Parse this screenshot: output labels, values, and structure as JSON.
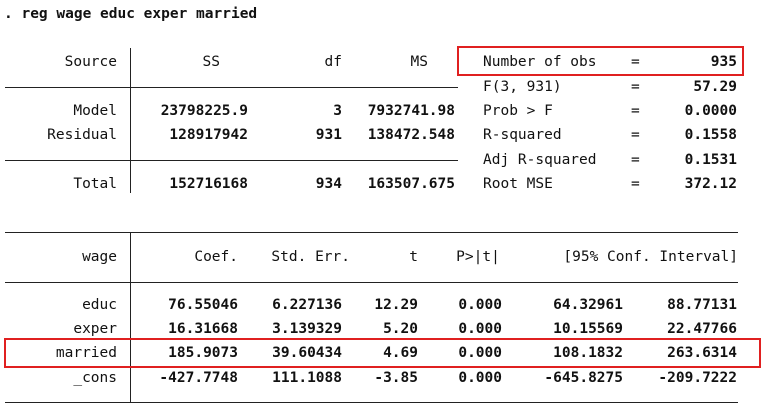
{
  "command": ". reg wage educ exper married",
  "anova": {
    "headers": {
      "source": "Source",
      "ss": "SS",
      "df": "df",
      "ms": "MS"
    },
    "rows": [
      {
        "source": "Model",
        "ss": "23798225.9",
        "df": "3",
        "ms": "7932741.98"
      },
      {
        "source": "Residual",
        "ss": "128917942",
        "df": "931",
        "ms": "138472.548"
      },
      {
        "source": "Total",
        "ss": "152716168",
        "df": "934",
        "ms": "163507.675"
      }
    ]
  },
  "stats": [
    {
      "label": "Number of obs",
      "eq": "=",
      "value": "935"
    },
    {
      "label": "F(3, 931)",
      "eq": "=",
      "value": "57.29"
    },
    {
      "label": "Prob > F",
      "eq": "=",
      "value": "0.0000"
    },
    {
      "label": "R-squared",
      "eq": "=",
      "value": "0.1558"
    },
    {
      "label": "Adj R-squared",
      "eq": "=",
      "value": "0.1531"
    },
    {
      "label": "Root MSE",
      "eq": "=",
      "value": "372.12"
    }
  ],
  "coef": {
    "headers": {
      "var": "wage",
      "coef": "Coef.",
      "se": "Std. Err.",
      "t": "t",
      "p": "P>|t|",
      "ci": "[95% Conf. Interval]"
    },
    "rows": [
      {
        "var": "educ",
        "coef": "76.55046",
        "se": "6.227136",
        "t": "12.29",
        "p": "0.000",
        "lo": "64.32961",
        "hi": "88.77131"
      },
      {
        "var": "exper",
        "coef": "16.31668",
        "se": "3.139329",
        "t": "5.20",
        "p": "0.000",
        "lo": "10.15569",
        "hi": "22.47766"
      },
      {
        "var": "married",
        "coef": "185.9073",
        "se": "39.60434",
        "t": "4.69",
        "p": "0.000",
        "lo": "108.1832",
        "hi": "263.6314"
      },
      {
        "var": "_cons",
        "coef": "-427.7748",
        "se": "111.1088",
        "t": "-3.85",
        "p": "0.000",
        "lo": "-645.8275",
        "hi": "-209.7222"
      }
    ]
  },
  "colors": {
    "highlight": "#e02020",
    "text": "#111111",
    "rule": "#222222"
  }
}
